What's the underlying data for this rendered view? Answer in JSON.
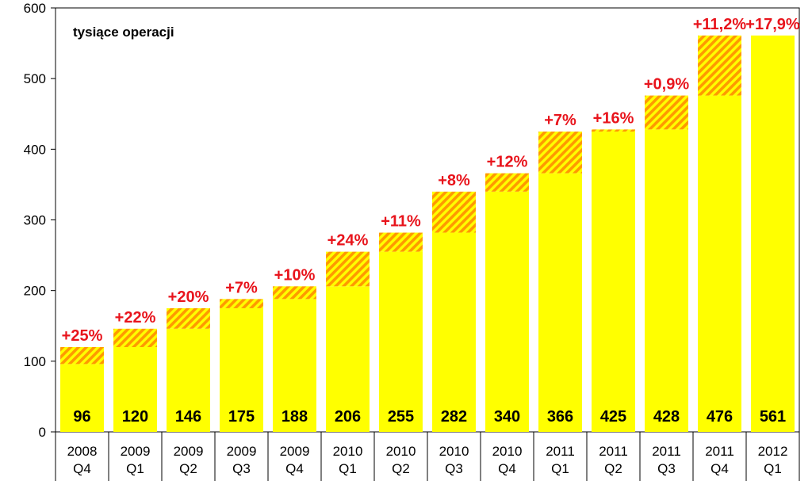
{
  "chart_data": {
    "type": "bar",
    "unit_label": "tysiące operacji",
    "categories": [
      [
        "2008",
        "Q4"
      ],
      [
        "2009",
        "Q1"
      ],
      [
        "2009",
        "Q2"
      ],
      [
        "2009",
        "Q3"
      ],
      [
        "2009",
        "Q4"
      ],
      [
        "2010",
        "Q1"
      ],
      [
        "2010",
        "Q2"
      ],
      [
        "2010",
        "Q3"
      ],
      [
        "2010",
        "Q4"
      ],
      [
        "2011",
        "Q1"
      ],
      [
        "2011",
        "Q2"
      ],
      [
        "2011",
        "Q3"
      ],
      [
        "2011",
        "Q4"
      ],
      [
        "2012",
        "Q1"
      ]
    ],
    "values": [
      96,
      120,
      146,
      175,
      188,
      206,
      255,
      282,
      340,
      366,
      425,
      428,
      476,
      561
    ],
    "growth_labels": [
      "+25%",
      "+22%",
      "+20%",
      "+7%",
      "+10%",
      "+24%",
      "+11%",
      "+8%",
      "+12%",
      "+7%",
      "+16%",
      "+0,9%",
      "+11,2%",
      "+17,9%"
    ],
    "ylim": [
      0,
      600
    ],
    "yticks": [
      0,
      100,
      200,
      300,
      400,
      500,
      600
    ],
    "grid": false,
    "colors": {
      "bar_fill": "#ffff00",
      "increment_stripe_a": "#ff9900",
      "increment_stripe_b": "#ffff00",
      "growth_text": "#e8141c",
      "axis": "#000000"
    }
  }
}
